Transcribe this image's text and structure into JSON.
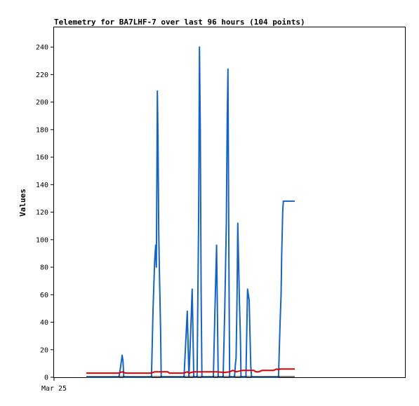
{
  "chart_data": {
    "type": "line",
    "title": "Telemetry for BA7LHF-7 over last 96 hours (104 points)",
    "xlabel": "",
    "ylabel": "Values",
    "x_tick_labels": [
      "Mar 25"
    ],
    "y_ticks": [
      0,
      20,
      40,
      60,
      80,
      100,
      120,
      140,
      160,
      180,
      200,
      220,
      240
    ],
    "ylim": [
      0,
      255
    ],
    "grid": false,
    "colors": {
      "blue": "#1565c0",
      "red": "#e00000",
      "black": "#000000"
    },
    "series": [
      {
        "color": "#1565c0",
        "points": [
          [
            0,
            0
          ],
          [
            20,
            0
          ],
          [
            21,
            7
          ],
          [
            22,
            16
          ],
          [
            22.5,
            12
          ],
          [
            23,
            0
          ],
          [
            40,
            0
          ],
          [
            41,
            50
          ],
          [
            42,
            85
          ],
          [
            42.6,
            96
          ],
          [
            43,
            80
          ],
          [
            43.6,
            208
          ],
          [
            44,
            175
          ],
          [
            44.5,
            104
          ],
          [
            45,
            70
          ],
          [
            45.6,
            35
          ],
          [
            46,
            0
          ],
          [
            60,
            0
          ],
          [
            61,
            24
          ],
          [
            62,
            48
          ],
          [
            63,
            0
          ],
          [
            64,
            30
          ],
          [
            65,
            64
          ],
          [
            66,
            0
          ],
          [
            68,
            0
          ],
          [
            69,
            120
          ],
          [
            69.5,
            240
          ],
          [
            70,
            180
          ],
          [
            70.5,
            60
          ],
          [
            71,
            0
          ],
          [
            78,
            0
          ],
          [
            79,
            50
          ],
          [
            80,
            96
          ],
          [
            81,
            0
          ],
          [
            84,
            0
          ],
          [
            85,
            48
          ],
          [
            86,
            112
          ],
          [
            86.5,
            185
          ],
          [
            87,
            224
          ],
          [
            87.6,
            80
          ],
          [
            88,
            0
          ],
          [
            91,
            0
          ],
          [
            91.6,
            10
          ],
          [
            92,
            14
          ],
          [
            92.6,
            60
          ],
          [
            93,
            112
          ],
          [
            94,
            56
          ],
          [
            94.6,
            30
          ],
          [
            95,
            0
          ],
          [
            98,
            0
          ],
          [
            99,
            64
          ],
          [
            100,
            56
          ],
          [
            101,
            8
          ],
          [
            101.5,
            0
          ],
          [
            118,
            0
          ],
          [
            119,
            40
          ],
          [
            119.6,
            60
          ],
          [
            120,
            90
          ],
          [
            120.6,
            120
          ],
          [
            121,
            128
          ],
          [
            128,
            128
          ]
        ]
      },
      {
        "color": "#e00000",
        "points": [
          [
            0,
            3
          ],
          [
            20,
            3
          ],
          [
            22,
            4
          ],
          [
            24,
            3
          ],
          [
            40,
            3
          ],
          [
            42,
            4
          ],
          [
            50,
            4
          ],
          [
            51,
            3
          ],
          [
            60,
            3
          ],
          [
            62,
            4
          ],
          [
            63,
            3
          ],
          [
            66,
            4
          ],
          [
            80,
            4
          ],
          [
            85,
            3.5
          ],
          [
            88,
            4
          ],
          [
            90,
            5
          ],
          [
            92,
            4
          ],
          [
            96,
            5
          ],
          [
            103,
            5
          ],
          [
            104,
            4
          ],
          [
            106,
            4
          ],
          [
            108,
            5
          ],
          [
            115,
            5
          ],
          [
            117,
            6
          ],
          [
            118,
            5.5
          ],
          [
            119,
            6
          ],
          [
            128,
            6
          ]
        ]
      },
      {
        "color": "#000000",
        "points": [
          [
            0,
            0.5
          ],
          [
            128,
            0.5
          ]
        ]
      }
    ]
  }
}
